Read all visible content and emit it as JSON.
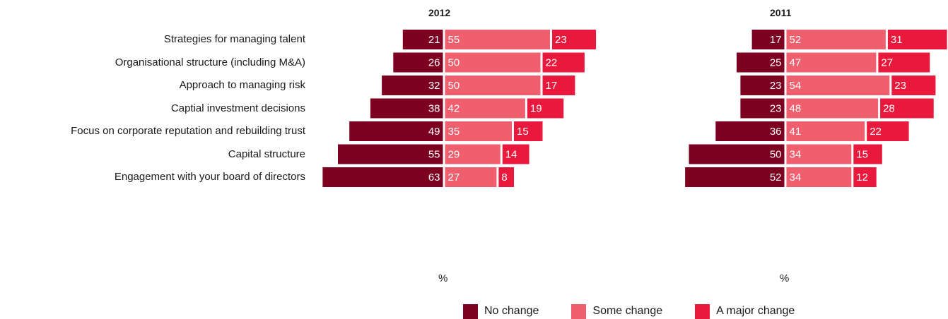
{
  "chart_data": {
    "type": "bar",
    "layout": "diverging-horizontal-stacked",
    "unit": "%",
    "categories": [
      "Strategies for managing talent",
      "Organisational structure (including M&A)",
      "Approach to managing risk",
      "Captial investment decisions",
      "Focus on corporate reputation and rebuilding trust",
      "Capital structure",
      "Engagement with your board of directors"
    ],
    "legend": [
      "No change",
      "Some change",
      "A major change"
    ],
    "colors": {
      "no_change": "#7d0020",
      "some_change": "#f05f6e",
      "major_change": "#e8193c"
    },
    "panels": [
      {
        "title": "2012",
        "series": [
          {
            "name": "No change",
            "values": [
              21,
              26,
              32,
              38,
              49,
              55,
              63
            ]
          },
          {
            "name": "Some change",
            "values": [
              55,
              50,
              50,
              42,
              35,
              29,
              27
            ]
          },
          {
            "name": "A major change",
            "values": [
              23,
              22,
              17,
              19,
              15,
              14,
              8
            ]
          }
        ]
      },
      {
        "title": "2011",
        "series": [
          {
            "name": "No change",
            "values": [
              17,
              25,
              23,
              23,
              36,
              50,
              52
            ]
          },
          {
            "name": "Some change",
            "values": [
              52,
              47,
              54,
              48,
              41,
              34,
              34
            ]
          },
          {
            "name": "A major change",
            "values": [
              31,
              27,
              23,
              28,
              22,
              15,
              12
            ]
          }
        ]
      }
    ]
  }
}
